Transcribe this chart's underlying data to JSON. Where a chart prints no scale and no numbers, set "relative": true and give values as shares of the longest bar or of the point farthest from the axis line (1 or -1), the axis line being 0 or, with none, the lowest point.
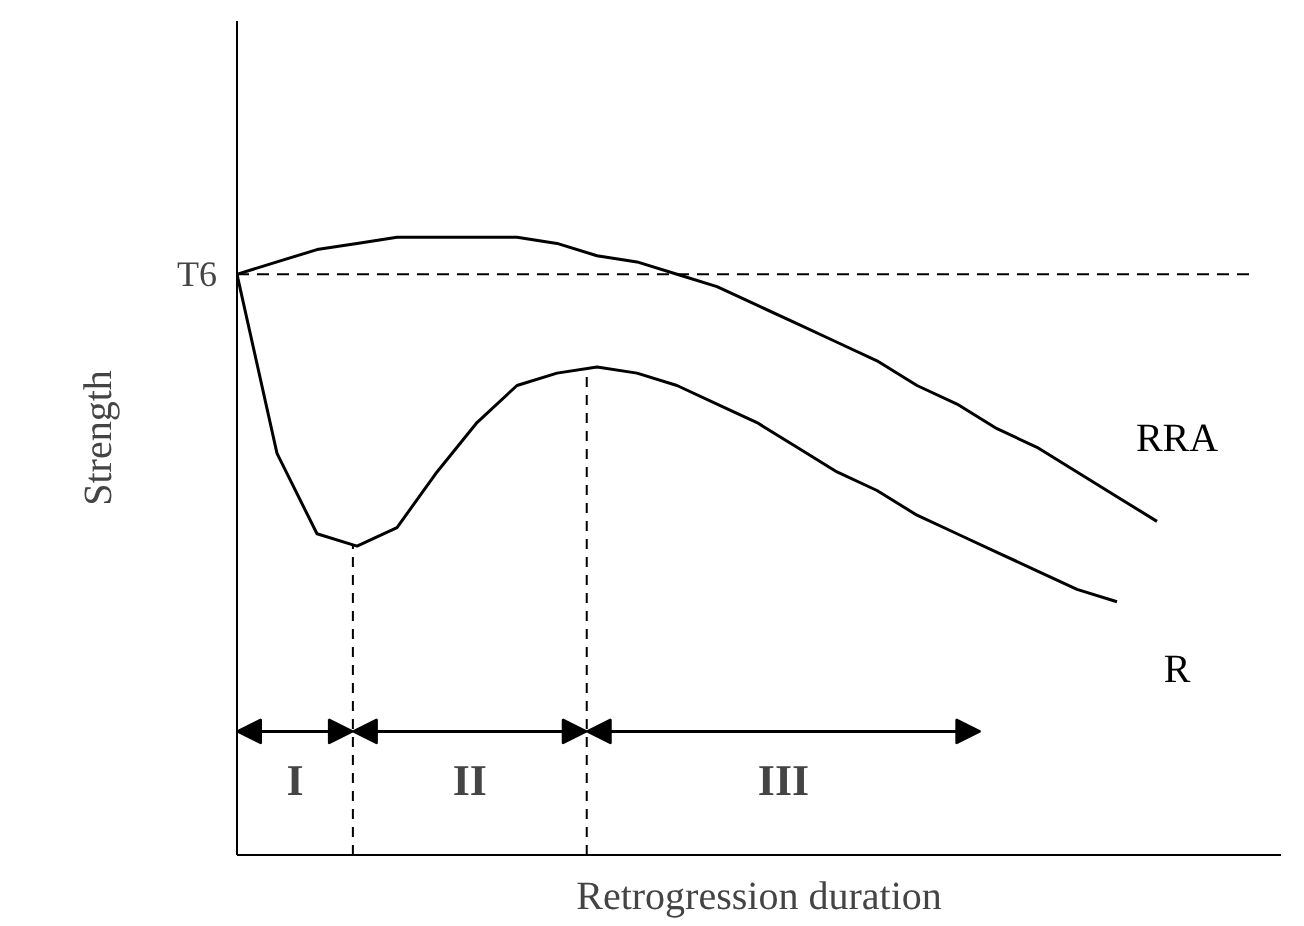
{
  "chart_data": {
    "type": "line",
    "relative": true,
    "xlabel": "Retrogression duration",
    "ylabel": "Strength",
    "categories": [
      null,
      null,
      null,
      null,
      null,
      null,
      null,
      null,
      null,
      null,
      null,
      null,
      null,
      null,
      null,
      null,
      null,
      null,
      null,
      null,
      null,
      null,
      null,
      null,
      null
    ],
    "series": [
      {
        "name": "RRA",
        "color": "#000000",
        "values": [
          0.94,
          0.96,
          0.98,
          0.99,
          1.0,
          1.0,
          1.0,
          1.0,
          0.99,
          0.97,
          0.96,
          0.94,
          0.92,
          0.89,
          0.86,
          0.83,
          0.8,
          0.76,
          0.73,
          0.69,
          0.66,
          0.62,
          0.58,
          0.54,
          null
        ]
      },
      {
        "name": "R",
        "color": "#000000",
        "values": [
          0.94,
          0.65,
          0.52,
          0.5,
          0.53,
          0.62,
          0.7,
          0.76,
          0.78,
          0.79,
          0.78,
          0.76,
          0.73,
          0.7,
          0.66,
          0.62,
          0.59,
          0.55,
          0.52,
          0.49,
          0.46,
          0.43,
          0.41,
          null,
          null
        ]
      }
    ],
    "ref_lines": [
      {
        "axis": "y",
        "value": 0.94,
        "label": "T6",
        "line_style": "dashed"
      }
    ],
    "annotations": [
      "I",
      "II",
      "III"
    ],
    "legend": false,
    "marker": "none",
    "line_style": "solid"
  }
}
